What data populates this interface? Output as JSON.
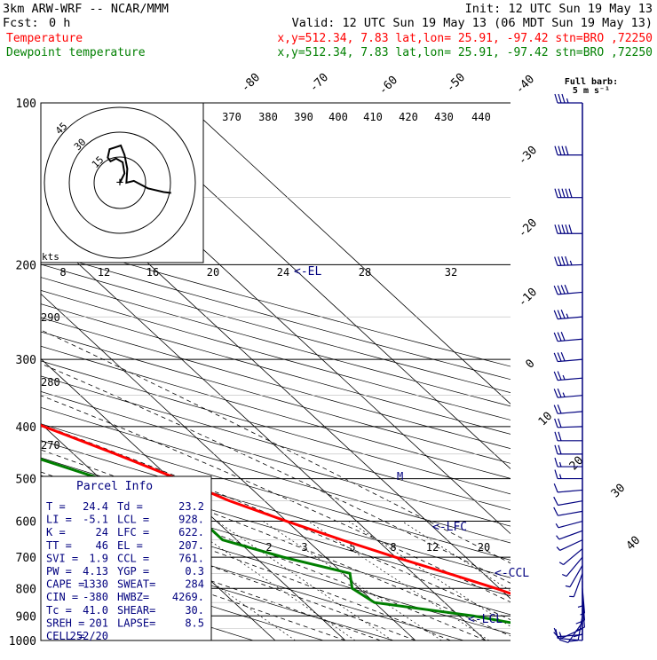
{
  "header": {
    "model": "3km ARW-WRF -- NCAR/MMM",
    "init": "Init: 12 UTC Sun 19 May 13",
    "fcst_label": "Fcst:",
    "fcst_value": "0 h",
    "valid": "Valid: 12 UTC Sun 19 May 13 (06 MDT Sun 19 May 13)",
    "series": [
      {
        "name": "Temperature",
        "info": "x,y=512.34,  7.83   lat,lon= 25.91, -97.42  stn=BRO ,72250"
      },
      {
        "name": "Dewpoint temperature",
        "info": "x,y=512.34,  7.83   lat,lon= 25.91, -97.42  stn=BRO ,72250"
      }
    ]
  },
  "colors": {
    "temperature": "#ff0000",
    "dewpoint": "#007f00",
    "parcel": "#00007f",
    "grid": "#000000"
  },
  "barb_legend": {
    "line1": "Full barb:",
    "line2": "5 m s⁻¹"
  },
  "hodograph": {
    "units_label": "kts",
    "ring_labels": [
      "15",
      "30",
      "45"
    ],
    "trace": [
      [
        0,
        0
      ],
      [
        0.5,
        -1
      ],
      [
        0.3,
        -2.2
      ],
      [
        -0.4,
        -2.6
      ],
      [
        -1,
        -2.3
      ],
      [
        -1.3,
        -2.7
      ],
      [
        -1.1,
        -3.6
      ],
      [
        0.1,
        -4
      ],
      [
        0.5,
        -3
      ],
      [
        0.8,
        -1.5
      ],
      [
        0.7,
        0
      ],
      [
        1.5,
        -0.2
      ],
      [
        3,
        0.6
      ],
      [
        4.7,
        1
      ],
      [
        5.5,
        1.1
      ]
    ]
  },
  "parcel_info": {
    "title": "Parcel Info",
    "rows": [
      {
        "label": "T  =",
        "value": "24.4",
        "label2": "Td =",
        "value2": "23.2"
      },
      {
        "label": "LI =",
        "value": "-5.1",
        "label2": "LCL =",
        "value2": "928."
      },
      {
        "label": "K  =",
        "value": "24",
        "label2": "LFC =",
        "value2": "622."
      },
      {
        "label": "TT =",
        "value": "46",
        "label2": "EL =",
        "value2": "207."
      },
      {
        "label": "SVI =",
        "value": "1.9",
        "label2": "CCL =",
        "value2": "761."
      },
      {
        "label": "PW =",
        "value": "4.13",
        "label2": "YGP =",
        "value2": "0.3"
      },
      {
        "label": "CAPE =",
        "value": "1330",
        "label2": "SWEAT=",
        "value2": "284"
      },
      {
        "label": "CIN =",
        "value": "-380",
        "label2": "HWBZ=",
        "value2": "4269."
      },
      {
        "label": "Tc =",
        "value": "41.0",
        "label2": "SHEAR=",
        "value2": "30."
      },
      {
        "label": "SREH =",
        "value": "201",
        "label2": "LAPSE=",
        "value2": "8.5"
      },
      {
        "label": "CELL =",
        "value": "252/20",
        "label2": "",
        "value2": ""
      }
    ]
  },
  "chart_data": {
    "type": "line",
    "title": "",
    "pressure_levels": [
      100,
      200,
      300,
      400,
      500,
      600,
      700,
      800,
      900,
      1000
    ],
    "temperature_ticks": [
      -80,
      -70,
      -60,
      -50,
      -40,
      -30,
      -20,
      -10,
      0,
      10,
      20,
      30,
      40
    ],
    "theta_labels_top": [
      370,
      380,
      390,
      400,
      410,
      420,
      430,
      440
    ],
    "theta_labels_left": [
      290,
      280,
      270
    ],
    "mixing_ratio_labels": [
      2,
      3,
      5,
      8,
      12,
      20
    ],
    "upper_mixing_labels": [
      8,
      12,
      16,
      20,
      24,
      28,
      32
    ],
    "level_markers": [
      "<-EL",
      "<-LFC",
      "<-CCL",
      "<-LCL"
    ],
    "freezing_marker": "M",
    "series": [
      {
        "name": "Temperature",
        "points": [
          {
            "p": 1000,
            "t": 24.4
          },
          {
            "p": 925,
            "t": 23.5
          },
          {
            "p": 900,
            "t": 25.5
          },
          {
            "p": 850,
            "t": 23
          },
          {
            "p": 800,
            "t": 19.5
          },
          {
            "p": 750,
            "t": 15
          },
          {
            "p": 700,
            "t": 10
          },
          {
            "p": 650,
            "t": 5
          },
          {
            "p": 600,
            "t": 0
          },
          {
            "p": 550,
            "t": -5
          },
          {
            "p": 500,
            "t": -9
          },
          {
            "p": 450,
            "t": -14
          },
          {
            "p": 400,
            "t": -20
          },
          {
            "p": 350,
            "t": -27
          },
          {
            "p": 300,
            "t": -35.5
          },
          {
            "p": 250,
            "t": -45
          },
          {
            "p": 200,
            "t": -54
          },
          {
            "p": 175,
            "t": -58
          },
          {
            "p": 150,
            "t": -64
          },
          {
            "p": 125,
            "t": -64
          },
          {
            "p": 100,
            "t": -64
          }
        ]
      },
      {
        "name": "Dewpoint temperature",
        "points": [
          {
            "p": 1000,
            "t": 23.2
          },
          {
            "p": 950,
            "t": 20
          },
          {
            "p": 900,
            "t": 12
          },
          {
            "p": 850,
            "t": 0
          },
          {
            "p": 800,
            "t": -1
          },
          {
            "p": 750,
            "t": 1
          },
          {
            "p": 700,
            "t": -6
          },
          {
            "p": 650,
            "t": -12
          },
          {
            "p": 600,
            "t": -12
          },
          {
            "p": 550,
            "t": -14
          },
          {
            "p": 500,
            "t": -20
          },
          {
            "p": 450,
            "t": -27
          },
          {
            "p": 400,
            "t": -28
          },
          {
            "p": 350,
            "t": -32
          },
          {
            "p": 300,
            "t": -43
          },
          {
            "p": 250,
            "t": -57
          },
          {
            "p": 200,
            "t": -71
          },
          {
            "p": 175,
            "t": -75
          },
          {
            "p": 150,
            "t": -80
          },
          {
            "p": 125,
            "t": -84
          },
          {
            "p": 100,
            "t": -86
          }
        ]
      }
    ],
    "winds": [
      {
        "p": 1000,
        "dir": 275,
        "spd": 8
      },
      {
        "p": 975,
        "dir": 265,
        "spd": 8
      },
      {
        "p": 950,
        "dir": 245,
        "spd": 7
      },
      {
        "p": 925,
        "dir": 215,
        "spd": 5
      },
      {
        "p": 900,
        "dir": 190,
        "spd": 5
      },
      {
        "p": 875,
        "dir": 180,
        "spd": 5
      },
      {
        "p": 850,
        "dir": 175,
        "spd": 5
      },
      {
        "p": 825,
        "dir": 175,
        "spd": 5
      },
      {
        "p": 800,
        "dir": 175,
        "spd": 4
      },
      {
        "p": 775,
        "dir": 180,
        "spd": 3
      },
      {
        "p": 750,
        "dir": 200,
        "spd": 3
      },
      {
        "p": 725,
        "dir": 210,
        "spd": 3
      },
      {
        "p": 700,
        "dir": 220,
        "spd": 3
      },
      {
        "p": 675,
        "dir": 230,
        "spd": 3
      },
      {
        "p": 650,
        "dir": 245,
        "spd": 3
      },
      {
        "p": 625,
        "dir": 250,
        "spd": 4
      },
      {
        "p": 600,
        "dir": 255,
        "spd": 4
      },
      {
        "p": 575,
        "dir": 260,
        "spd": 5
      },
      {
        "p": 550,
        "dir": 260,
        "spd": 6
      },
      {
        "p": 525,
        "dir": 265,
        "spd": 7
      },
      {
        "p": 500,
        "dir": 270,
        "spd": 8
      },
      {
        "p": 475,
        "dir": 270,
        "spd": 9
      },
      {
        "p": 450,
        "dir": 270,
        "spd": 10
      },
      {
        "p": 425,
        "dir": 270,
        "spd": 10
      },
      {
        "p": 400,
        "dir": 268,
        "spd": 11
      },
      {
        "p": 375,
        "dir": 265,
        "spd": 12
      },
      {
        "p": 350,
        "dir": 265,
        "spd": 13
      },
      {
        "p": 325,
        "dir": 265,
        "spd": 14
      },
      {
        "p": 300,
        "dir": 265,
        "spd": 15
      },
      {
        "p": 275,
        "dir": 265,
        "spd": 17
      },
      {
        "p": 250,
        "dir": 265,
        "spd": 19
      },
      {
        "p": 225,
        "dir": 265,
        "spd": 21
      },
      {
        "p": 200,
        "dir": 268,
        "spd": 24
      },
      {
        "p": 175,
        "dir": 270,
        "spd": 27
      },
      {
        "p": 150,
        "dir": 270,
        "spd": 25
      },
      {
        "p": 125,
        "dir": 270,
        "spd": 21
      },
      {
        "p": 100,
        "dir": 270,
        "spd": 18
      }
    ]
  }
}
